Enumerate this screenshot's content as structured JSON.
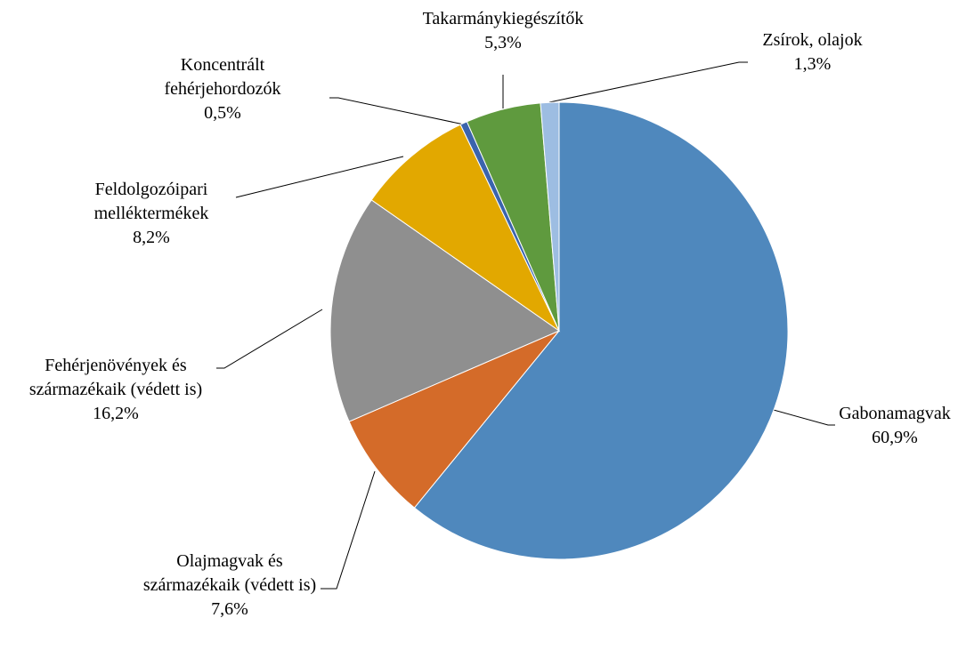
{
  "chart_data": {
    "type": "pie",
    "categories": [
      "Gabonamagvak",
      "Olajmagvak és származékaik (védett is)",
      "Fehérjenövények és származékaik (védett is)",
      "Feldolgozóipari melléktermékek",
      "Koncentrált fehérjehordozók",
      "Takarmánykiegészítők",
      "Zsírok, olajok"
    ],
    "values": [
      60.9,
      7.6,
      16.2,
      8.2,
      0.5,
      5.3,
      1.3
    ],
    "value_labels": [
      "60,9%",
      "7,6%",
      "16,2%",
      "8,2%",
      "0,5%",
      "5,3%",
      "1,3%"
    ],
    "colors": [
      "#4f88bd",
      "#d46b29",
      "#8f8f8f",
      "#e2a800",
      "#3b64ad",
      "#5f9a3e",
      "#9dbde2"
    ]
  }
}
